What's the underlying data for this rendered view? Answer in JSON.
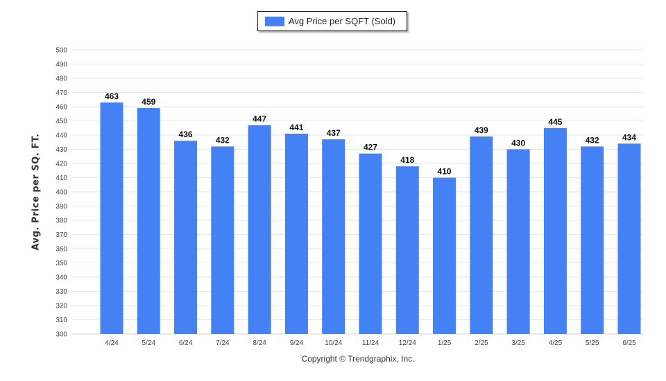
{
  "chart_data": {
    "type": "bar",
    "categories": [
      "4/24",
      "5/24",
      "6/24",
      "7/24",
      "8/24",
      "9/24",
      "10/24",
      "11/24",
      "12/24",
      "1/25",
      "2/25",
      "3/25",
      "4/25",
      "5/25",
      "6/25"
    ],
    "series": [
      {
        "name": "Avg Price per SQFT (Sold)",
        "values": [
          463,
          459,
          436,
          432,
          447,
          441,
          437,
          427,
          418,
          410,
          439,
          430,
          445,
          432,
          434
        ]
      }
    ],
    "title": "",
    "xlabel": "",
    "ylabel": "Avg. Price per SQ. FT.",
    "ylim": [
      300,
      500
    ],
    "yticks": [
      300,
      310,
      320,
      330,
      340,
      350,
      360,
      370,
      380,
      390,
      400,
      410,
      420,
      430,
      440,
      450,
      460,
      470,
      480,
      490,
      500
    ],
    "grid": true,
    "legend": "top-center",
    "data_labels": true,
    "colors": {
      "bar": "#4481f5",
      "grid": "#e6e6e6"
    }
  },
  "footer": {
    "copyright": "Copyright © Trendgraphix, Inc."
  }
}
